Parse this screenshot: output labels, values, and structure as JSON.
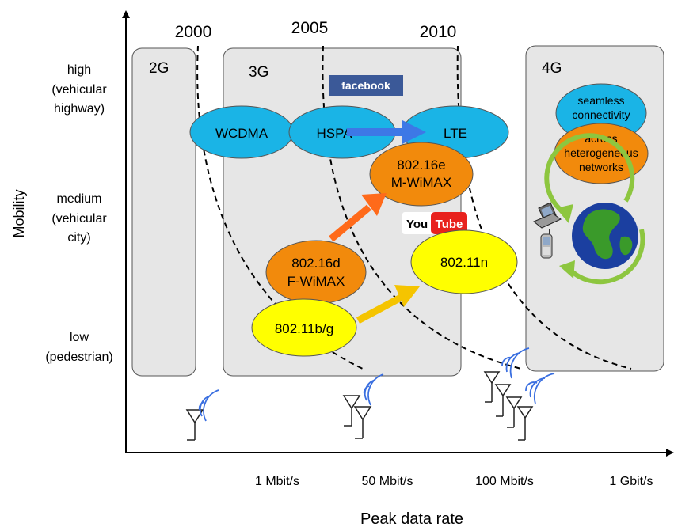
{
  "axes": {
    "y_label": "Mobility",
    "x_label": "Peak data rate",
    "y_levels": [
      {
        "line1": "high",
        "line2": "(vehicular",
        "line3": "highway)"
      },
      {
        "line1": "medium",
        "line2": "(vehicular",
        "line3": "city)"
      },
      {
        "line1": "low",
        "line2": "(pedestrian)"
      }
    ],
    "x_ticks": [
      "1 Mbit/s",
      "50 Mbit/s",
      "100 Mbit/s",
      "1 Gbit/s"
    ]
  },
  "years": [
    "2000",
    "2005",
    "2010"
  ],
  "generations": {
    "g2": "2G",
    "g3": "3G",
    "g4": "4G"
  },
  "technologies": {
    "wcdma": "WCDMA",
    "hspa": "HSPA",
    "lte": "LTE",
    "wimax_e_line1": "802.16e",
    "wimax_e_line2": "M-WiMAX",
    "wimax_d_line1": "802.16d",
    "wimax_d_line2": "F-WiMAX",
    "wifi_bg": "802.11b/g",
    "wifi_n": "802.11n"
  },
  "fourg_bubbles": {
    "seamless_line1": "seamless",
    "seamless_line2": "connectivity",
    "across_line1": "across",
    "across_line2": "heterogeneous",
    "across_line3": "networks"
  },
  "logos": {
    "facebook": "facebook",
    "youtube_you": "You",
    "youtube_tube": "Tube"
  },
  "colors": {
    "cellular_blue": "#1ab4e6",
    "wimax_orange": "#f28a0c",
    "wifi_yellow": "#ffff00",
    "generation_box": "#e6e6e6",
    "arrow_blue": "#3d78e6",
    "arrow_orange": "#ff6a1a",
    "arrow_yellow": "#f5c400",
    "facebook_blue": "#3b5998",
    "youtube_red": "#e8211d",
    "globe_ocean": "#1b3fa0",
    "globe_land": "#3a9a2a",
    "cycle_green": "#8dc63f",
    "antenna_wave": "#3a6fe0"
  }
}
